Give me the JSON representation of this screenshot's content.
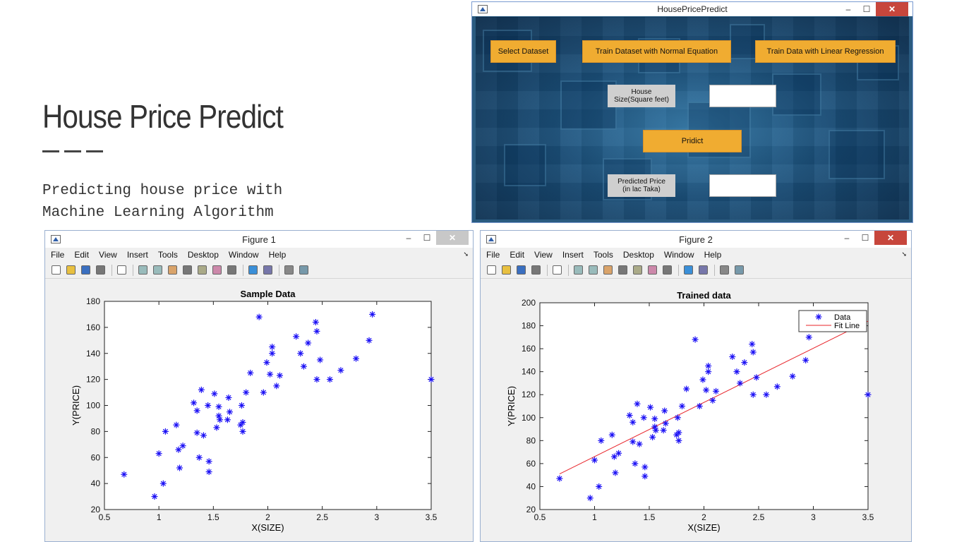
{
  "slide": {
    "title": "House Price Predict",
    "subtitle": "Predicting house price with\nMachine Learning Algorithm"
  },
  "app": {
    "title": "HousePricePredict",
    "btn_select": "Select Dataset",
    "btn_normal": "Train Dataset with Normal Equation",
    "btn_linear": "Train Data with Linear Regression",
    "label_size": "House\nSize(Square feet)",
    "label_price": "Predicted Price\n(in lac Taka)",
    "btn_predict": "Pridict",
    "size_value": "",
    "price_value": ""
  },
  "menu": [
    "File",
    "Edit",
    "View",
    "Insert",
    "Tools",
    "Desktop",
    "Window",
    "Help"
  ],
  "toolbar_icons": [
    "new-file-icon",
    "open-folder-icon",
    "save-icon",
    "print-icon",
    "pointer-icon",
    "zoom-in-icon",
    "zoom-out-icon",
    "pan-hand-icon",
    "rotate-3d-icon",
    "data-cursor-icon",
    "brush-icon",
    "link-plot-icon",
    "colorbar-icon",
    "legend-icon",
    "hide-plot-tools-icon",
    "show-plot-tools-icon"
  ],
  "fig1": {
    "title": "Figure 1"
  },
  "fig2": {
    "title": "Figure 2"
  },
  "colors": {
    "marker": "#1a0ff5",
    "fit_line": "#e8242a",
    "button": "#f0ac31"
  },
  "chart_data": [
    {
      "type": "scatter",
      "title": "Sample Data",
      "xlabel": "X(SIZE)",
      "ylabel": "Y(PRICE)",
      "xlim": [
        0.5,
        3.5
      ],
      "ylim": [
        20,
        180
      ],
      "xticks": [
        "0.5",
        "1",
        "1.5",
        "2",
        "2.5",
        "3",
        "3.5"
      ],
      "yticks": [
        "20",
        "40",
        "60",
        "80",
        "100",
        "120",
        "140",
        "160",
        "180"
      ],
      "series": [
        {
          "points": [
            [
              0.68,
              47
            ],
            [
              0.96,
              30
            ],
            [
              1.0,
              63
            ],
            [
              1.04,
              40
            ],
            [
              1.06,
              80
            ],
            [
              1.16,
              85
            ],
            [
              1.18,
              66
            ],
            [
              1.19,
              52
            ],
            [
              1.22,
              69
            ],
            [
              1.32,
              102
            ],
            [
              1.35,
              96
            ],
            [
              1.35,
              79
            ],
            [
              1.37,
              60
            ],
            [
              1.39,
              112
            ],
            [
              1.41,
              77
            ],
            [
              1.45,
              100
            ],
            [
              1.46,
              57
            ],
            [
              1.46,
              49
            ],
            [
              1.51,
              109
            ],
            [
              1.53,
              83
            ],
            [
              1.55,
              92
            ],
            [
              1.55,
              99
            ],
            [
              1.56,
              89
            ],
            [
              1.63,
              89
            ],
            [
              1.64,
              106
            ],
            [
              1.65,
              95
            ],
            [
              1.75,
              85
            ],
            [
              1.76,
              100
            ],
            [
              1.77,
              87
            ],
            [
              1.77,
              80
            ],
            [
              1.8,
              110
            ],
            [
              1.84,
              125
            ],
            [
              1.92,
              168
            ],
            [
              1.96,
              110
            ],
            [
              1.99,
              133
            ],
            [
              2.02,
              124
            ],
            [
              2.04,
              140
            ],
            [
              2.04,
              145
            ],
            [
              2.08,
              115
            ],
            [
              2.11,
              123
            ],
            [
              2.26,
              153
            ],
            [
              2.3,
              140
            ],
            [
              2.33,
              130
            ],
            [
              2.37,
              148
            ],
            [
              2.44,
              164
            ],
            [
              2.45,
              120
            ],
            [
              2.45,
              157
            ],
            [
              2.48,
              135
            ],
            [
              2.57,
              120
            ],
            [
              2.67,
              127
            ],
            [
              2.81,
              136
            ],
            [
              2.93,
              150
            ],
            [
              2.96,
              170
            ],
            [
              3.5,
              120
            ]
          ]
        }
      ]
    },
    {
      "type": "scatter",
      "title": "Trained data",
      "xlabel": "X(SIZE)",
      "ylabel": "Y(PRICE)",
      "xlim": [
        0.5,
        3.5
      ],
      "ylim": [
        20,
        200
      ],
      "xticks": [
        "0.5",
        "1",
        "1.5",
        "2",
        "2.5",
        "3",
        "3.5"
      ],
      "yticks": [
        "20",
        "40",
        "60",
        "80",
        "100",
        "120",
        "140",
        "160",
        "180",
        "200"
      ],
      "legend": "top-right",
      "series": [
        {
          "name": "Data",
          "points": [
            [
              0.68,
              47
            ],
            [
              0.96,
              30
            ],
            [
              1.0,
              63
            ],
            [
              1.04,
              40
            ],
            [
              1.06,
              80
            ],
            [
              1.16,
              85
            ],
            [
              1.18,
              66
            ],
            [
              1.19,
              52
            ],
            [
              1.22,
              69
            ],
            [
              1.32,
              102
            ],
            [
              1.35,
              96
            ],
            [
              1.35,
              79
            ],
            [
              1.37,
              60
            ],
            [
              1.39,
              112
            ],
            [
              1.41,
              77
            ],
            [
              1.45,
              100
            ],
            [
              1.46,
              57
            ],
            [
              1.46,
              49
            ],
            [
              1.51,
              109
            ],
            [
              1.53,
              83
            ],
            [
              1.55,
              92
            ],
            [
              1.55,
              99
            ],
            [
              1.56,
              89
            ],
            [
              1.63,
              89
            ],
            [
              1.64,
              106
            ],
            [
              1.65,
              95
            ],
            [
              1.75,
              85
            ],
            [
              1.76,
              100
            ],
            [
              1.77,
              87
            ],
            [
              1.77,
              80
            ],
            [
              1.8,
              110
            ],
            [
              1.84,
              125
            ],
            [
              1.92,
              168
            ],
            [
              1.96,
              110
            ],
            [
              1.99,
              133
            ],
            [
              2.02,
              124
            ],
            [
              2.04,
              140
            ],
            [
              2.04,
              145
            ],
            [
              2.08,
              115
            ],
            [
              2.11,
              123
            ],
            [
              2.26,
              153
            ],
            [
              2.3,
              140
            ],
            [
              2.33,
              130
            ],
            [
              2.37,
              148
            ],
            [
              2.44,
              164
            ],
            [
              2.45,
              120
            ],
            [
              2.45,
              157
            ],
            [
              2.48,
              135
            ],
            [
              2.57,
              120
            ],
            [
              2.67,
              127
            ],
            [
              2.81,
              136
            ],
            [
              2.93,
              150
            ],
            [
              2.96,
              170
            ],
            [
              3.5,
              120
            ]
          ]
        },
        {
          "name": "Fit Line",
          "line": [
            [
              0.68,
              51
            ],
            [
              3.5,
              184
            ]
          ]
        }
      ]
    }
  ]
}
